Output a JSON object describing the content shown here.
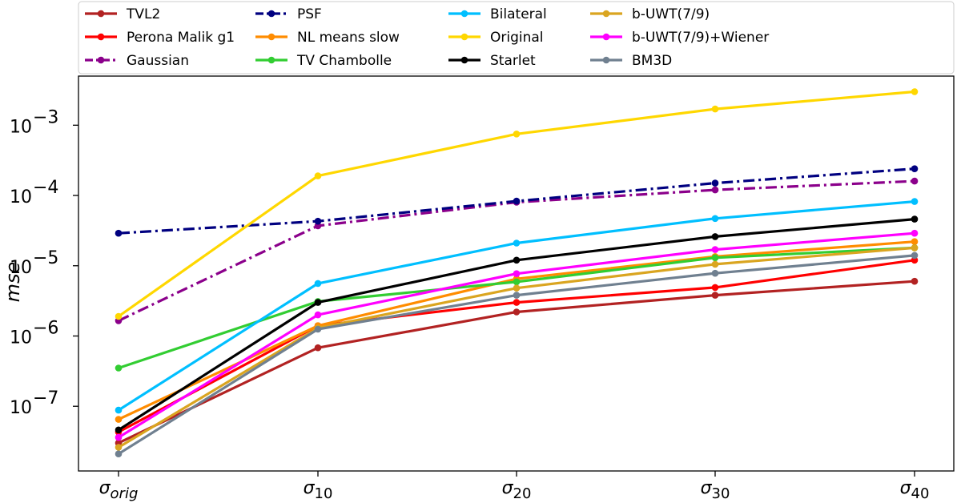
{
  "chart_data": {
    "type": "line",
    "title": "",
    "xlabel": "",
    "ylabel": "mse",
    "yscale": "log",
    "ylim": [
      1.2e-08,
      0.005
    ],
    "categories": [
      {
        "base": "σ",
        "sub": "orig"
      },
      {
        "base": "σ",
        "sub": "10"
      },
      {
        "base": "σ",
        "sub": "20"
      },
      {
        "base": "σ",
        "sub": "30"
      },
      {
        "base": "σ",
        "sub": "40"
      }
    ],
    "yticks": [
      {
        "value": 1e-07,
        "base": "10",
        "exp": "−7"
      },
      {
        "value": 1e-06,
        "base": "10",
        "exp": "−6"
      },
      {
        "value": 1e-05,
        "base": "10",
        "exp": "−5"
      },
      {
        "value": 0.0001,
        "base": "10",
        "exp": "−4"
      },
      {
        "value": 0.001,
        "base": "10",
        "exp": "−3"
      }
    ],
    "legend_position": "top",
    "legend_columns": 5,
    "series": [
      {
        "name": "TVL2",
        "color": "#b22222",
        "dash": "solid",
        "values": [
          3e-08,
          6.8e-07,
          2.2e-06,
          3.8e-06,
          6e-06
        ]
      },
      {
        "name": "Perona Malik g1",
        "color": "#ff0000",
        "dash": "solid",
        "values": [
          4.3e-08,
          1.4e-06,
          3e-06,
          4.9e-06,
          1.2e-05
        ]
      },
      {
        "name": "Gaussian",
        "color": "#8b008b",
        "dash": "dashdot",
        "values": [
          1.65e-06,
          3.7e-05,
          8e-05,
          0.00012,
          0.00016
        ]
      },
      {
        "name": "PSF",
        "color": "#000080",
        "dash": "dashdot",
        "values": [
          2.9e-05,
          4.3e-05,
          8.3e-05,
          0.00015,
          0.00024
        ]
      },
      {
        "name": "NL means slow",
        "color": "#ff8c00",
        "dash": "solid",
        "values": [
          6.5e-08,
          1.4e-06,
          6.5e-06,
          1.35e-05,
          2.2e-05
        ]
      },
      {
        "name": "TV Chambolle",
        "color": "#32cd32",
        "dash": "solid",
        "values": [
          3.5e-07,
          3.1e-06,
          5.9e-06,
          1.3e-05,
          1.8e-05
        ]
      },
      {
        "name": "Bilateral",
        "color": "#00bfff",
        "dash": "solid",
        "values": [
          8.8e-08,
          5.6e-06,
          2.1e-05,
          4.7e-05,
          8.2e-05
        ]
      },
      {
        "name": "Original",
        "color": "#ffd700",
        "dash": "solid",
        "values": [
          1.9e-06,
          0.00019,
          0.00075,
          0.0017,
          0.003
        ]
      },
      {
        "name": "Starlet",
        "color": "#000000",
        "dash": "solid",
        "values": [
          4.6e-08,
          3e-06,
          1.2e-05,
          2.6e-05,
          4.6e-05
        ]
      },
      {
        "name": "b-UWT(7/9)",
        "color": "#daa520",
        "dash": "solid",
        "values": [
          2.6e-08,
          1.3e-06,
          4.8e-06,
          1.05e-05,
          1.8e-05
        ]
      },
      {
        "name": "b-UWT(7/9)+Wiener",
        "color": "#ff00ff",
        "dash": "solid",
        "values": [
          3.6e-08,
          2e-06,
          7.7e-06,
          1.7e-05,
          2.9e-05
        ]
      },
      {
        "name": "BM3D",
        "color": "#708090",
        "dash": "solid",
        "values": [
          2.1e-08,
          1.25e-06,
          3.8e-06,
          7.8e-06,
          1.4e-05
        ]
      }
    ]
  }
}
